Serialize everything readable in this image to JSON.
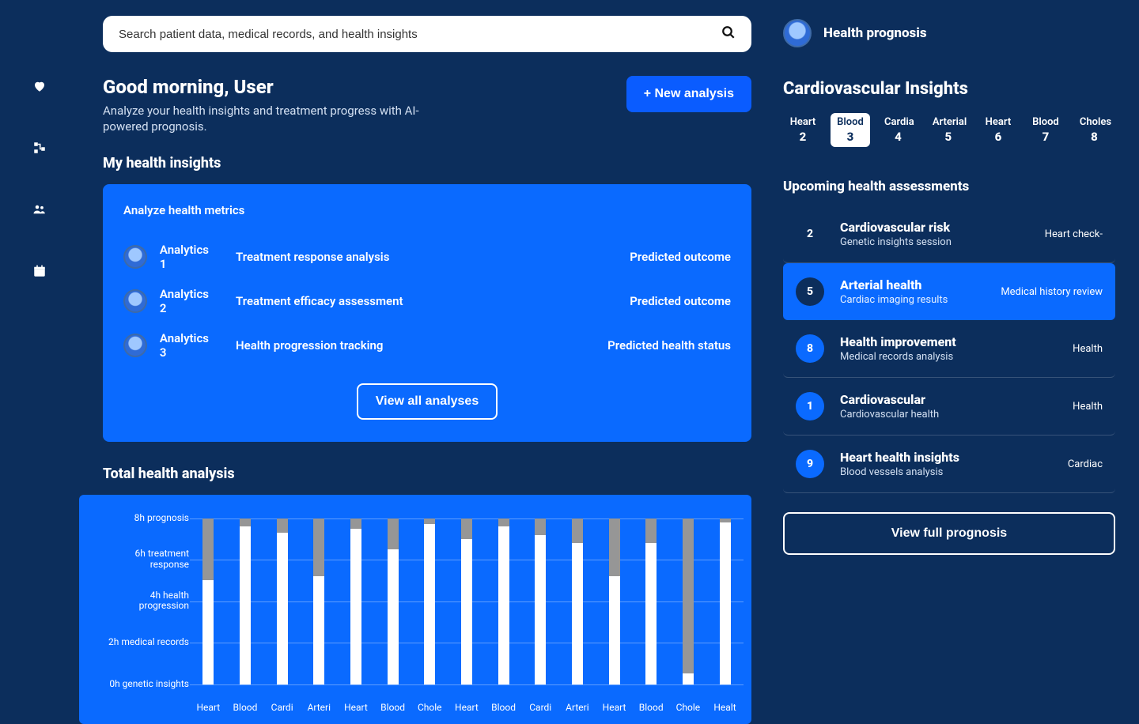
{
  "colors": {
    "background": "#0c2e5c",
    "accent": "#0a6aff",
    "text": "#ffffff",
    "muted": "#d3e0f2",
    "bar_secondary": "#969696"
  },
  "sidebar": {
    "items": [
      {
        "name": "heart",
        "glyph": "♥"
      },
      {
        "name": "network",
        "glyph": "⠿"
      },
      {
        "name": "people",
        "glyph": "👥"
      },
      {
        "name": "calendar",
        "glyph": "📅"
      }
    ]
  },
  "search": {
    "placeholder": "Search patient data, medical records, and health insights"
  },
  "user": {
    "header_label": "Health prognosis"
  },
  "greeting": {
    "title": "Good morning, User",
    "subtitle": "Analyze your health insights and treatment progress with AI-powered prognosis."
  },
  "buttons": {
    "new_analysis": "+ New analysis",
    "view_all_analyses": "View all analyses",
    "view_full_prognosis": "View full prognosis"
  },
  "insights": {
    "section_title": "My health insights",
    "card_title": "Analyze health metrics",
    "rows": [
      {
        "name": "Analytics 1",
        "desc": "Treatment response analysis",
        "status": "Predicted outcome"
      },
      {
        "name": "Analytics 2",
        "desc": "Treatment efficacy assessment",
        "status": "Predicted outcome"
      },
      {
        "name": "Analytics 3",
        "desc": "Health progression tracking",
        "status": "Predicted health status"
      }
    ]
  },
  "chart": {
    "title": "Total health analysis",
    "type": "stacked-bar",
    "y_axis": {
      "max_hours": 8,
      "ticks": [
        {
          "h": 8,
          "label": "8h prognosis"
        },
        {
          "h": 6,
          "label": "6h treatment response"
        },
        {
          "h": 4,
          "label": "4h health progression"
        },
        {
          "h": 2,
          "label": "2h medical records"
        },
        {
          "h": 0,
          "label": "0h genetic insights"
        }
      ]
    },
    "series_colors": {
      "primary": "#ffffff",
      "secondary": "#969696"
    },
    "bars": [
      {
        "label": "Heart",
        "primary": 5.0,
        "secondary": 3.0
      },
      {
        "label": "Blood",
        "primary": 7.6,
        "secondary": 0.4
      },
      {
        "label": "Cardi",
        "primary": 7.3,
        "secondary": 0.7
      },
      {
        "label": "Arteri",
        "primary": 5.2,
        "secondary": 2.8
      },
      {
        "label": "Heart",
        "primary": 7.5,
        "secondary": 0.5
      },
      {
        "label": "Blood",
        "primary": 6.5,
        "secondary": 1.5
      },
      {
        "label": "Chole",
        "primary": 7.7,
        "secondary": 0.3
      },
      {
        "label": "Heart",
        "primary": 7.0,
        "secondary": 1.0
      },
      {
        "label": "Blood",
        "primary": 7.6,
        "secondary": 0.4
      },
      {
        "label": "Cardi",
        "primary": 7.2,
        "secondary": 0.8
      },
      {
        "label": "Arteri",
        "primary": 6.8,
        "secondary": 1.2
      },
      {
        "label": "Heart",
        "primary": 5.2,
        "secondary": 2.8
      },
      {
        "label": "Blood",
        "primary": 6.8,
        "secondary": 1.2
      },
      {
        "label": "Chole",
        "primary": 0.5,
        "secondary": 7.5
      },
      {
        "label": "Healt",
        "primary": 7.8,
        "secondary": 0.2
      }
    ]
  },
  "cardio": {
    "title": "Cardiovascular Insights",
    "tabs": [
      {
        "label": "Heart",
        "num": "2",
        "active": false
      },
      {
        "label": "Blood",
        "num": "3",
        "active": true
      },
      {
        "label": "Cardia",
        "num": "4",
        "active": false
      },
      {
        "label": "Arterial",
        "num": "5",
        "active": false
      },
      {
        "label": "Heart",
        "num": "6",
        "active": false
      },
      {
        "label": "Blood",
        "num": "7",
        "active": false
      },
      {
        "label": "Choles",
        "num": "8",
        "active": false
      }
    ],
    "assess_title": "Upcoming health assessments",
    "assessments": [
      {
        "num": "2",
        "title": "Cardiovascular risk",
        "sub": "Genetic insights session",
        "right": "Heart check-",
        "highlight": false,
        "plain_num": true
      },
      {
        "num": "5",
        "title": "Arterial health",
        "sub": "Cardiac imaging results",
        "right": "Medical history review",
        "highlight": true
      },
      {
        "num": "8",
        "title": "Health improvement",
        "sub": "Medical records analysis",
        "right": "Health",
        "highlight": false
      },
      {
        "num": "1",
        "title": "Cardiovascular",
        "sub": "Cardiovascular health",
        "right": "Health",
        "highlight": false
      },
      {
        "num": "9",
        "title": "Heart health insights",
        "sub": "Blood vessels analysis",
        "right": "Cardiac",
        "highlight": false
      }
    ]
  }
}
